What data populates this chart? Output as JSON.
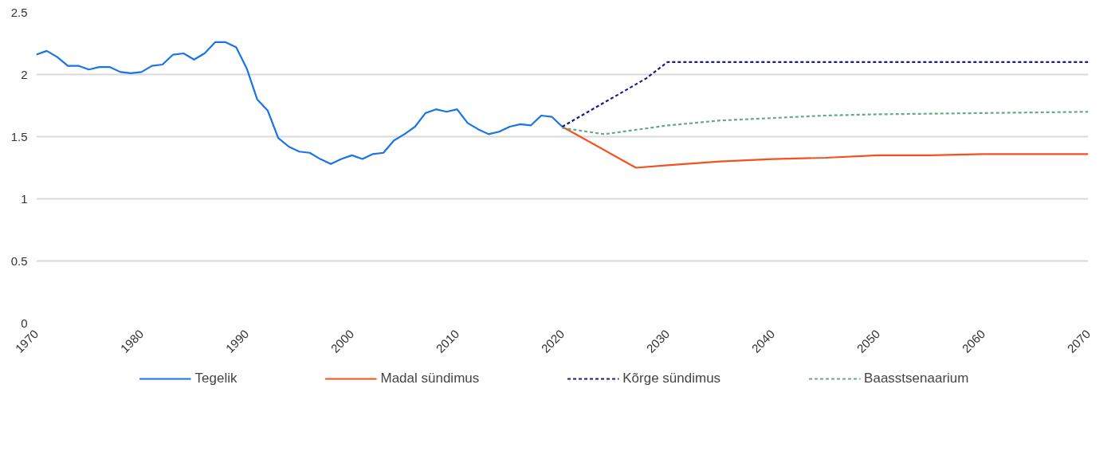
{
  "chart_data": {
    "type": "line",
    "xlim": [
      1970,
      2070
    ],
    "ylim": [
      0,
      2.5
    ],
    "xticks": [
      1970,
      1980,
      1990,
      2000,
      2010,
      2020,
      2030,
      2040,
      2050,
      2060,
      2070
    ],
    "yticks": [
      0,
      0.5,
      1,
      1.5,
      2,
      2.5
    ],
    "grid": "y",
    "legend": "bottom",
    "marker": "none",
    "series": [
      {
        "name": "Tegelik",
        "color": "#1a73e8",
        "line_style": "solid",
        "x": [
          1970,
          1971,
          1972,
          1973,
          1974,
          1975,
          1976,
          1977,
          1978,
          1979,
          1980,
          1981,
          1982,
          1983,
          1984,
          1985,
          1986,
          1987,
          1988,
          1989,
          1990,
          1991,
          1992,
          1993,
          1994,
          1995,
          1996,
          1997,
          1998,
          1999,
          2000,
          2001,
          2002,
          2003,
          2004,
          2005,
          2006,
          2007,
          2008,
          2009,
          2010,
          2011,
          2012,
          2013,
          2014,
          2015,
          2016,
          2017,
          2018,
          2019,
          2020
        ],
        "values": [
          2.16,
          2.19,
          2.14,
          2.07,
          2.07,
          2.04,
          2.06,
          2.06,
          2.02,
          2.01,
          2.02,
          2.07,
          2.08,
          2.16,
          2.17,
          2.12,
          2.17,
          2.26,
          2.26,
          2.22,
          2.05,
          1.8,
          1.71,
          1.49,
          1.42,
          1.38,
          1.37,
          1.32,
          1.28,
          1.32,
          1.35,
          1.32,
          1.36,
          1.37,
          1.47,
          1.52,
          1.58,
          1.69,
          1.72,
          1.7,
          1.72,
          1.61,
          1.56,
          1.52,
          1.54,
          1.58,
          1.6,
          1.59,
          1.67,
          1.66,
          1.58
        ]
      },
      {
        "name": "Madal sündimus",
        "color": "#f4511e",
        "line_style": "solid",
        "x": [
          2020,
          2027,
          2030,
          2035,
          2040,
          2045,
          2050,
          2055,
          2060,
          2070
        ],
        "values": [
          1.58,
          1.25,
          1.27,
          1.3,
          1.32,
          1.33,
          1.35,
          1.35,
          1.36,
          1.36
        ]
      },
      {
        "name": "Kõrge sündimus",
        "color": "#1a1a8c",
        "line_style": "dashed",
        "x": [
          2020,
          2028,
          2030,
          2070
        ],
        "values": [
          1.58,
          1.97,
          2.1,
          2.1
        ]
      },
      {
        "name": "Baasstsenaarium",
        "color": "#66aa88",
        "line_style": "dashed",
        "x": [
          2020,
          2024,
          2030,
          2035,
          2040,
          2045,
          2050,
          2060,
          2070
        ],
        "values": [
          1.57,
          1.52,
          1.59,
          1.63,
          1.65,
          1.67,
          1.68,
          1.69,
          1.7
        ]
      }
    ]
  }
}
